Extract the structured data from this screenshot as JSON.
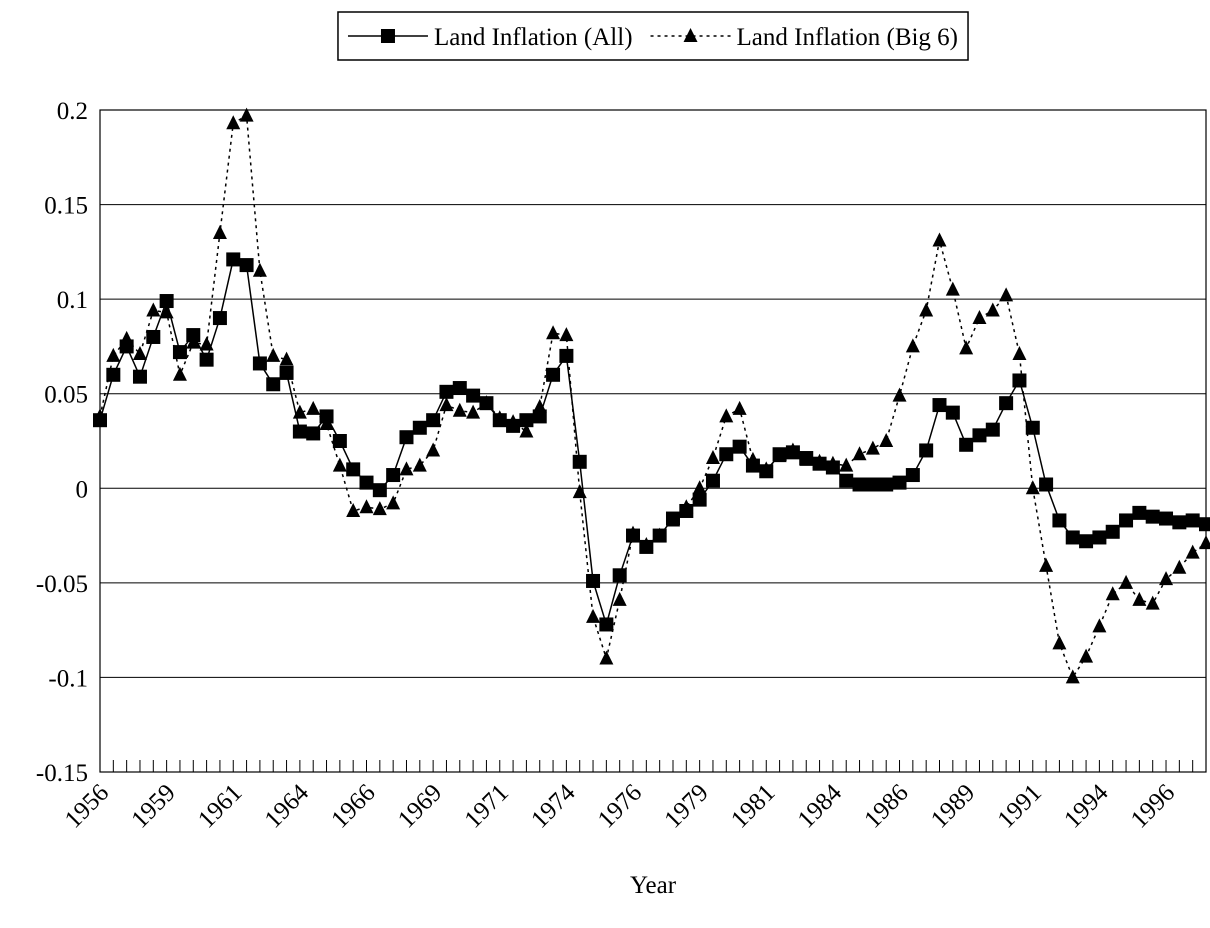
{
  "chart_data": {
    "type": "line",
    "x_label": "Year",
    "categories": [
      "1956",
      null,
      null,
      null,
      null,
      "1959",
      null,
      null,
      null,
      null,
      "1961",
      null,
      null,
      null,
      null,
      "1964",
      null,
      null,
      null,
      null,
      "1966",
      null,
      null,
      null,
      null,
      "1969",
      null,
      null,
      null,
      null,
      "1971",
      null,
      null,
      null,
      null,
      "1974",
      null,
      null,
      null,
      null,
      "1976",
      null,
      null,
      null,
      null,
      "1979",
      null,
      null,
      null,
      null,
      "1981",
      null,
      null,
      null,
      null,
      "1984",
      null,
      null,
      null,
      null,
      "1986",
      null,
      null,
      null,
      null,
      "1989",
      null,
      null,
      null,
      null,
      "1991",
      null,
      null,
      null,
      null,
      "1994",
      null,
      null,
      null,
      null,
      "1996",
      null,
      null,
      null
    ],
    "series": [
      {
        "name": "Land Inflation (All)",
        "color": "#000000",
        "marker": "square",
        "dash": "solid",
        "values": [
          0.036,
          0.06,
          0.075,
          0.059,
          0.08,
          0.099,
          0.072,
          0.081,
          0.068,
          0.09,
          0.121,
          0.118,
          0.066,
          0.055,
          0.061,
          0.03,
          0.029,
          0.038,
          0.025,
          0.01,
          0.003,
          -0.001,
          0.007,
          0.027,
          0.032,
          0.036,
          0.051,
          0.053,
          0.049,
          0.045,
          0.036,
          0.033,
          0.036,
          0.038,
          0.06,
          0.07,
          0.014,
          -0.049,
          -0.072,
          -0.046,
          -0.025,
          -0.031,
          -0.025,
          -0.016,
          -0.012,
          -0.006,
          0.004,
          0.018,
          0.022,
          0.012,
          0.009,
          0.018,
          0.019,
          0.016,
          0.013,
          0.011,
          0.004,
          0.002,
          0.002,
          0.002,
          0.003,
          0.007,
          0.02,
          0.044,
          0.04,
          0.023,
          0.028,
          0.031,
          0.045,
          0.057,
          0.032,
          0.002,
          -0.017,
          -0.026,
          -0.028,
          -0.026,
          -0.023,
          -0.017,
          -0.013,
          -0.015,
          -0.016,
          -0.018,
          -0.017,
          -0.019
        ]
      },
      {
        "name": "Land Inflation (Big 6)",
        "color": "#000000",
        "marker": "triangle",
        "dash": "dotted",
        "values": [
          0.038,
          0.07,
          0.079,
          0.071,
          0.094,
          0.093,
          0.06,
          0.077,
          0.076,
          0.135,
          0.193,
          0.197,
          0.115,
          0.07,
          0.068,
          0.04,
          0.042,
          0.034,
          0.012,
          -0.012,
          -0.01,
          -0.011,
          -0.008,
          0.01,
          0.012,
          0.02,
          0.044,
          0.041,
          0.04,
          0.045,
          0.037,
          0.035,
          0.03,
          0.043,
          0.082,
          0.081,
          -0.002,
          -0.068,
          -0.09,
          -0.059,
          -0.024,
          -0.03,
          -0.025,
          -0.017,
          -0.01,
          0.0,
          0.016,
          0.038,
          0.042,
          0.015,
          0.01,
          0.017,
          0.02,
          0.015,
          0.014,
          0.013,
          0.012,
          0.018,
          0.021,
          0.025,
          0.049,
          0.075,
          0.094,
          0.131,
          0.105,
          0.074,
          0.09,
          0.094,
          0.102,
          0.071,
          0.0,
          -0.041,
          -0.082,
          -0.1,
          -0.089,
          -0.073,
          -0.056,
          -0.05,
          -0.059,
          -0.061,
          -0.048,
          -0.042,
          -0.034,
          -0.029
        ]
      }
    ],
    "ylim": [
      -0.15,
      0.2
    ],
    "yticks": [
      -0.15,
      -0.1,
      -0.05,
      0,
      0.05,
      0.1,
      0.15,
      0.2
    ],
    "grid": true,
    "legend": "top"
  }
}
